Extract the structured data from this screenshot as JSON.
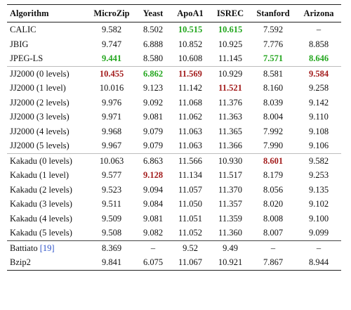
{
  "table": {
    "headers": [
      "Algorithm",
      "MicroZip",
      "Yeast",
      "ApoA1",
      "ISREC",
      "Stanford",
      "Arizona"
    ],
    "colors": {
      "best": "#23a61e",
      "worst": "#a31d1d",
      "citation": "#2b50c8"
    },
    "groups": [
      {
        "rows": [
          {
            "name": "CALIC",
            "values": [
              "9.582",
              "8.502",
              "10.515",
              "10.615",
              "7.592",
              "–"
            ],
            "styles": [
              "",
              "",
              "best",
              "best",
              "",
              ""
            ]
          },
          {
            "name": "JBIG",
            "values": [
              "9.747",
              "6.888",
              "10.852",
              "10.925",
              "7.776",
              "8.858"
            ],
            "styles": [
              "",
              "",
              "",
              "",
              "",
              ""
            ]
          },
          {
            "name": "JPEG-LS",
            "values": [
              "9.441",
              "8.580",
              "10.608",
              "11.145",
              "7.571",
              "8.646"
            ],
            "styles": [
              "best",
              "",
              "",
              "",
              "best",
              "best"
            ]
          }
        ]
      },
      {
        "rows": [
          {
            "name": "JJ2000 (0 levels)",
            "values": [
              "10.455",
              "6.862",
              "11.569",
              "10.929",
              "8.581",
              "9.584"
            ],
            "styles": [
              "worst",
              "best",
              "worst",
              "",
              "",
              "worst"
            ]
          },
          {
            "name": "JJ2000 (1 level)",
            "values": [
              "10.016",
              "9.123",
              "11.142",
              "11.521",
              "8.160",
              "9.258"
            ],
            "styles": [
              "",
              "",
              "",
              "worst",
              "",
              ""
            ]
          },
          {
            "name": "JJ2000 (2 levels)",
            "values": [
              "9.976",
              "9.092",
              "11.068",
              "11.376",
              "8.039",
              "9.142"
            ],
            "styles": [
              "",
              "",
              "",
              "",
              "",
              ""
            ]
          },
          {
            "name": "JJ2000 (3 levels)",
            "values": [
              "9.971",
              "9.081",
              "11.062",
              "11.363",
              "8.004",
              "9.110"
            ],
            "styles": [
              "",
              "",
              "",
              "",
              "",
              ""
            ]
          },
          {
            "name": "JJ2000 (4 levels)",
            "values": [
              "9.968",
              "9.079",
              "11.063",
              "11.365",
              "7.992",
              "9.108"
            ],
            "styles": [
              "",
              "",
              "",
              "",
              "",
              ""
            ]
          },
          {
            "name": "JJ2000 (5 levels)",
            "values": [
              "9.967",
              "9.079",
              "11.063",
              "11.366",
              "7.990",
              "9.106"
            ],
            "styles": [
              "",
              "",
              "",
              "",
              "",
              ""
            ]
          }
        ]
      },
      {
        "rows": [
          {
            "name": "Kakadu (0 levels)",
            "values": [
              "10.063",
              "6.863",
              "11.566",
              "10.930",
              "8.601",
              "9.582"
            ],
            "styles": [
              "",
              "",
              "",
              "",
              "worst",
              ""
            ]
          },
          {
            "name": "Kakadu (1 level)",
            "values": [
              "9.577",
              "9.128",
              "11.134",
              "11.517",
              "8.179",
              "9.253"
            ],
            "styles": [
              "",
              "worst",
              "",
              "",
              "",
              ""
            ]
          },
          {
            "name": "Kakadu (2 levels)",
            "values": [
              "9.523",
              "9.094",
              "11.057",
              "11.370",
              "8.056",
              "9.135"
            ],
            "styles": [
              "",
              "",
              "",
              "",
              "",
              ""
            ]
          },
          {
            "name": "Kakadu (3 levels)",
            "values": [
              "9.511",
              "9.084",
              "11.050",
              "11.357",
              "8.020",
              "9.102"
            ],
            "styles": [
              "",
              "",
              "",
              "",
              "",
              ""
            ]
          },
          {
            "name": "Kakadu (4 levels)",
            "values": [
              "9.509",
              "9.081",
              "11.051",
              "11.359",
              "8.008",
              "9.100"
            ],
            "styles": [
              "",
              "",
              "",
              "",
              "",
              ""
            ]
          },
          {
            "name": "Kakadu (5 levels)",
            "values": [
              "9.508",
              "9.082",
              "11.052",
              "11.360",
              "8.007",
              "9.099"
            ],
            "styles": [
              "",
              "",
              "",
              "",
              "",
              ""
            ]
          }
        ]
      },
      {
        "section_break": true,
        "rows": [
          {
            "name": "Battiato",
            "citation": "[19]",
            "values": [
              "8.369",
              "–",
              "9.52",
              "9.49",
              "–",
              "–"
            ],
            "styles": [
              "",
              "",
              "",
              "",
              "",
              ""
            ]
          },
          {
            "name": "Bzip2",
            "values": [
              "9.841",
              "6.075",
              "11.067",
              "10.921",
              "7.867",
              "8.944"
            ],
            "styles": [
              "",
              "",
              "",
              "",
              "",
              ""
            ]
          }
        ]
      }
    ]
  }
}
